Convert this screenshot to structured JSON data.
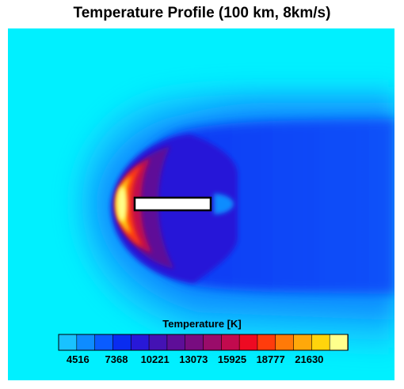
{
  "title": "Temperature Profile (100 km, 8km/s)",
  "chart_data": {
    "type": "heatmap",
    "title": "Temperature Profile (100 km, 8km/s)",
    "colorbar": {
      "label": "Temperature [K]",
      "min": 3090,
      "max": 24482,
      "tick_labels": [
        "4516",
        "7368",
        "10221",
        "13073",
        "15925",
        "18777",
        "21630"
      ],
      "tick_values": [
        4516,
        7368,
        10221,
        13073,
        15925,
        18777,
        21630
      ],
      "levels": 16,
      "colors": [
        "#19c2ff",
        "#0e8cff",
        "#0a5cff",
        "#0a2cf0",
        "#2818d8",
        "#4412b4",
        "#5e0e98",
        "#780c80",
        "#9a0c6a",
        "#c20a4e",
        "#ee0a22",
        "#ff3c0c",
        "#ff7a08",
        "#ffa80a",
        "#ffd40c",
        "#ffff8c"
      ]
    },
    "background_color": "#00f0ff",
    "body_fill": "#ffffff",
    "body_outline": "#000000"
  }
}
